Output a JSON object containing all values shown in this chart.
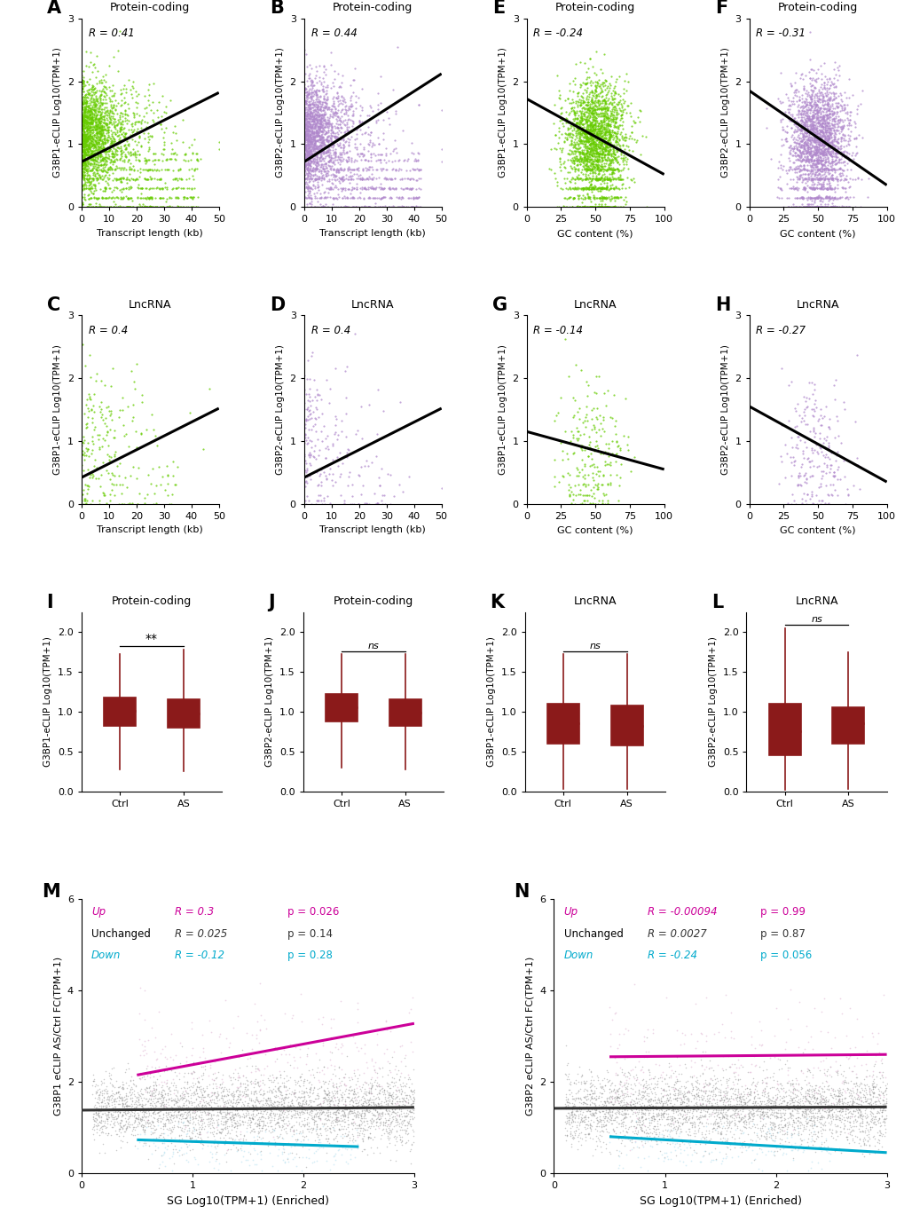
{
  "panels_top": [
    {
      "label": "A",
      "title": "Protein-coding",
      "R": "R = 0.41",
      "color": "#66cc00",
      "xlabel": "Transcript length (kb)",
      "ylabel": "G3BP1-eCLIP Log10(TPM+1)",
      "xlim": [
        0,
        50
      ],
      "ylim": [
        0,
        3
      ],
      "xticks": [
        0,
        10,
        20,
        30,
        40,
        50
      ],
      "yticks": [
        0,
        1,
        2,
        3
      ],
      "slope": 0.022,
      "intercept": 0.72
    },
    {
      "label": "B",
      "title": "Protein-coding",
      "R": "R = 0.44",
      "color": "#b088cc",
      "xlabel": "Transcript length (kb)",
      "ylabel": "G3BP2-eCLIP Log10(TPM+1)",
      "xlim": [
        0,
        50
      ],
      "ylim": [
        0,
        3
      ],
      "xticks": [
        0,
        10,
        20,
        30,
        40,
        50
      ],
      "yticks": [
        0,
        1,
        2,
        3
      ],
      "slope": 0.028,
      "intercept": 0.72
    },
    {
      "label": "E",
      "title": "Protein-coding",
      "R": "R = -0.24",
      "color": "#66cc00",
      "xlabel": "GC content (%)",
      "ylabel": "G3BP1-eCLIP Log10(TPM+1)",
      "xlim": [
        0,
        100
      ],
      "ylim": [
        0,
        3
      ],
      "xticks": [
        0,
        25,
        50,
        75,
        100
      ],
      "yticks": [
        0,
        1,
        2,
        3
      ],
      "slope": -0.012,
      "intercept": 1.72
    },
    {
      "label": "F",
      "title": "Protein-coding",
      "R": "R = -0.31",
      "color": "#b088cc",
      "xlabel": "GC content (%)",
      "ylabel": "G3BP2-eCLIP Log10(TPM+1)",
      "xlim": [
        0,
        100
      ],
      "ylim": [
        0,
        3
      ],
      "xticks": [
        0,
        25,
        50,
        75,
        100
      ],
      "yticks": [
        0,
        1,
        2,
        3
      ],
      "slope": -0.015,
      "intercept": 1.85
    }
  ],
  "panels_mid": [
    {
      "label": "C",
      "title": "LncRNA",
      "R": "R = 0.4",
      "color": "#66cc00",
      "xlabel": "Transcript length (kb)",
      "ylabel": "G3BP1-eCLIP Log10(TPM+1)",
      "xlim": [
        0,
        50
      ],
      "ylim": [
        0,
        3
      ],
      "xticks": [
        0,
        10,
        20,
        30,
        40,
        50
      ],
      "yticks": [
        0,
        1,
        2,
        3
      ],
      "slope": 0.022,
      "intercept": 0.42,
      "n_points": 180
    },
    {
      "label": "D",
      "title": "LncRNA",
      "R": "R = 0.4",
      "color": "#b088cc",
      "xlabel": "Transcript length (kb)",
      "ylabel": "G3BP2-eCLIP Log10(TPM+1)",
      "xlim": [
        0,
        50
      ],
      "ylim": [
        0,
        3
      ],
      "xticks": [
        0,
        10,
        20,
        30,
        40,
        50
      ],
      "yticks": [
        0,
        1,
        2,
        3
      ],
      "slope": 0.022,
      "intercept": 0.42,
      "n_points": 180
    },
    {
      "label": "G",
      "title": "LncRNA",
      "R": "R = -0.14",
      "color": "#66cc00",
      "xlabel": "GC content (%)",
      "ylabel": "G3BP1-eCLIP Log10(TPM+1)",
      "xlim": [
        0,
        100
      ],
      "ylim": [
        0,
        3
      ],
      "xticks": [
        0,
        25,
        50,
        75,
        100
      ],
      "yticks": [
        0,
        1,
        2,
        3
      ],
      "slope": -0.006,
      "intercept": 1.15,
      "n_points": 180
    },
    {
      "label": "H",
      "title": "LncRNA",
      "R": "R = -0.27",
      "color": "#b088cc",
      "xlabel": "GC content (%)",
      "ylabel": "G3BP2-eCLIP Log10(TPM+1)",
      "xlim": [
        0,
        100
      ],
      "ylim": [
        0,
        3
      ],
      "xticks": [
        0,
        25,
        50,
        75,
        100
      ],
      "yticks": [
        0,
        1,
        2,
        3
      ],
      "slope": -0.012,
      "intercept": 1.55,
      "n_points": 180
    }
  ],
  "panels_box": [
    {
      "label": "I",
      "title": "Protein-coding",
      "ylabel": "G3BP1-eCLIP Log10(TPM+1)",
      "sig": "**",
      "ylim": [
        0,
        2.25
      ],
      "yticks": [
        0.0,
        0.5,
        1.0,
        1.5,
        2.0
      ],
      "ctrl": {
        "median": 1.01,
        "q1": 0.82,
        "q3": 1.18,
        "whislo": 0.27,
        "whishi": 1.72
      },
      "as": {
        "median": 0.98,
        "q1": 0.8,
        "q3": 1.15,
        "whislo": 0.25,
        "whishi": 1.78
      }
    },
    {
      "label": "J",
      "title": "Protein-coding",
      "ylabel": "G3BP2-eCLIP Log10(TPM+1)",
      "sig": "ns",
      "ylim": [
        0,
        2.25
      ],
      "yticks": [
        0.0,
        0.5,
        1.0,
        1.5,
        2.0
      ],
      "ctrl": {
        "median": 1.05,
        "q1": 0.88,
        "q3": 1.22,
        "whislo": 0.3,
        "whishi": 1.72
      },
      "as": {
        "median": 0.99,
        "q1": 0.82,
        "q3": 1.16,
        "whislo": 0.28,
        "whishi": 1.72
      }
    },
    {
      "label": "K",
      "title": "LncRNA",
      "ylabel": "G3BP1-eCLIP Log10(TPM+1)",
      "sig": "ns",
      "ylim": [
        0,
        2.25
      ],
      "yticks": [
        0.0,
        0.5,
        1.0,
        1.5,
        2.0
      ],
      "ctrl": {
        "median": 0.85,
        "q1": 0.6,
        "q3": 1.1,
        "whislo": 0.03,
        "whishi": 1.72
      },
      "as": {
        "median": 0.82,
        "q1": 0.58,
        "q3": 1.08,
        "whislo": 0.03,
        "whishi": 1.72
      }
    },
    {
      "label": "L",
      "title": "LncRNA",
      "ylabel": "G3BP2-eCLIP Log10(TPM+1)",
      "sig": "ns",
      "ylim": [
        0,
        2.25
      ],
      "yticks": [
        0.0,
        0.5,
        1.0,
        1.5,
        2.0
      ],
      "ctrl": {
        "median": 0.75,
        "q1": 0.45,
        "q3": 1.1,
        "whislo": 0.02,
        "whishi": 2.05
      },
      "as": {
        "median": 0.85,
        "q1": 0.6,
        "q3": 1.05,
        "whislo": 0.03,
        "whishi": 1.75
      }
    }
  ],
  "panels_scatter_bottom": [
    {
      "label": "M",
      "ylabel": "G3BP1 eCLIP AS/Ctrl FC(TPM+1)",
      "xlabel": "SG Log10(TPM+1) (Enriched)",
      "xlim": [
        0,
        3
      ],
      "ylim": [
        0,
        6
      ],
      "xticks": [
        0,
        1,
        2,
        3
      ],
      "yticks": [
        0,
        2,
        4,
        6
      ],
      "up_line": {
        "x0": 0.5,
        "x1": 3.0,
        "y0": 2.15,
        "y1": 3.28
      },
      "unchanged_line": {
        "x0": 0.0,
        "x1": 3.0,
        "y0": 1.38,
        "y1": 1.44
      },
      "down_line": {
        "x0": 0.5,
        "x1": 2.5,
        "y0": 0.73,
        "y1": 0.58
      },
      "legend": [
        {
          "cat": "Up",
          "R": "R = 0.3",
          "p": "p = 0.026",
          "color": "#cc0099"
        },
        {
          "cat": "Unchanged",
          "R": "R = 0.025",
          "p": "p = 0.14",
          "color": "#333333"
        },
        {
          "cat": "Down",
          "R": "R = -0.12",
          "p": "p = 0.28",
          "color": "#00aacc"
        }
      ]
    },
    {
      "label": "N",
      "ylabel": "G3BP2 eCLIP AS/Ctrl FC(TPM+1)",
      "xlabel": "SG Log10(TPM+1) (Enriched)",
      "xlim": [
        0,
        3
      ],
      "ylim": [
        0,
        6
      ],
      "xticks": [
        0,
        1,
        2,
        3
      ],
      "yticks": [
        0,
        2,
        4,
        6
      ],
      "up_line": {
        "x0": 0.5,
        "x1": 3.0,
        "y0": 2.55,
        "y1": 2.6
      },
      "unchanged_line": {
        "x0": 0.0,
        "x1": 3.0,
        "y0": 1.42,
        "y1": 1.45
      },
      "down_line": {
        "x0": 0.5,
        "x1": 3.0,
        "y0": 0.8,
        "y1": 0.45
      },
      "legend": [
        {
          "cat": "Up",
          "R": "R = -0.00094",
          "p": "p = 0.99",
          "color": "#cc0099"
        },
        {
          "cat": "Unchanged",
          "R": "R = 0.0027",
          "p": "p = 0.87",
          "color": "#333333"
        },
        {
          "cat": "Down",
          "R": "R = -0.24",
          "p": "p = 0.056",
          "color": "#00aacc"
        }
      ]
    }
  ],
  "green_color": "#66cc00",
  "purple_color": "#b088cc",
  "box_color": "#8b1a1a",
  "bg_color": "#ffffff"
}
